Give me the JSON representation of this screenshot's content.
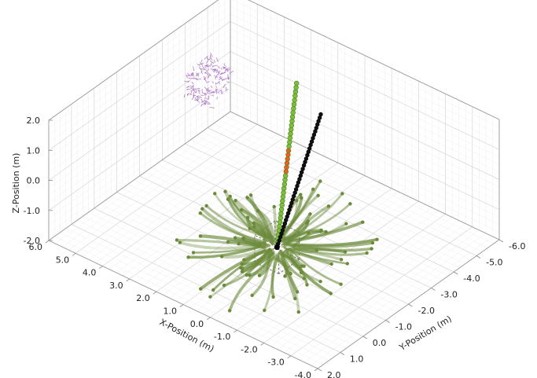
{
  "axes": {
    "x_label": "X-Position (m)",
    "y_label": "Y-Position (m)",
    "z_label": "Z-Position (m)",
    "x_ticks": [
      "6.0",
      "5.0",
      "4.0",
      "3.0",
      "2.0",
      "1.0",
      "0.0",
      "-1.0",
      "-2.0",
      "-3.0",
      "-4.0"
    ],
    "y_ticks": [
      "2.0",
      "1.0",
      "0.0",
      "-1.0",
      "-2.0",
      "-3.0",
      "-4.0",
      "-5.0",
      "-6.0"
    ],
    "z_ticks": [
      "2.0",
      "1.0",
      "0.0",
      "-1.0",
      "-2.0"
    ],
    "x_range": [
      -4.0,
      6.0
    ],
    "y_range": [
      -6.0,
      2.0
    ],
    "z_range": [
      -2.0,
      2.0
    ],
    "grid": true
  },
  "colors": {
    "streamline": "#6b8a3a",
    "green_marker": "#7cbf3a",
    "black_marker": "#111111",
    "orange_marker": "#e8641e",
    "purple_field": "#9b59b6"
  },
  "scene": {
    "green_trajectory": {
      "start": [
        -0.8,
        0.0,
        -0.4
      ],
      "end": [
        3.2,
        -5.6,
        0.35
      ],
      "count": 40,
      "highlight_range": [
        18,
        23
      ]
    },
    "black_trajectory": {
      "start": [
        -0.8,
        0.0,
        -0.4
      ],
      "end": [
        2.3,
        -5.6,
        -0.3
      ],
      "count": 40
    },
    "source_point": [
      -0.8,
      0.0,
      -0.4
    ],
    "purple_cluster": {
      "center": [
        4.2,
        -2.8,
        1.4
      ],
      "radius": 0.9
    }
  }
}
